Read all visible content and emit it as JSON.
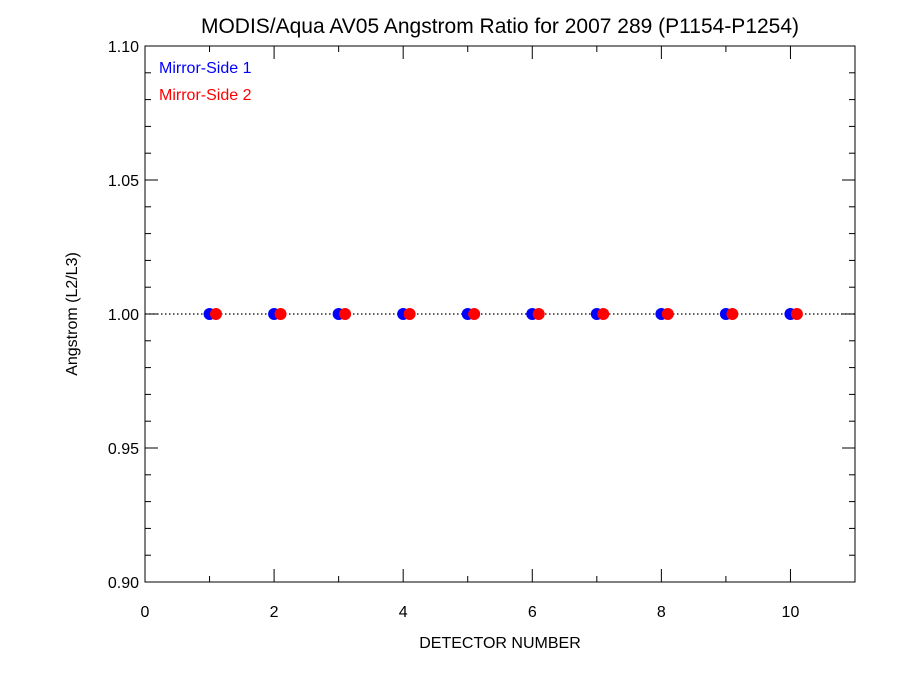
{
  "chart_data": {
    "type": "scatter",
    "title": "MODIS/Aqua AV05 Angstrom Ratio for 2007 289 (P1154-P1254)",
    "xlabel": "DETECTOR NUMBER",
    "ylabel": "Angstrom (L2/L3)",
    "xlim": [
      0,
      11
    ],
    "ylim": [
      0.9,
      1.1
    ],
    "x_ticks": [
      0,
      2,
      4,
      6,
      8,
      10
    ],
    "x_tick_labels": [
      "0",
      "2",
      "4",
      "6",
      "8",
      "10"
    ],
    "y_ticks": [
      0.9,
      0.95,
      1.0,
      1.05,
      1.1
    ],
    "y_tick_labels": [
      "0.90",
      "0.95",
      "1.00",
      "1.05",
      "1.10"
    ],
    "reference_line": {
      "y": 1.0,
      "style": "dotted"
    },
    "legend_position": "top-left",
    "series": [
      {
        "name": "Mirror-Side 1",
        "color": "#0000ff",
        "x": [
          1,
          2,
          3,
          4,
          5,
          6,
          7,
          8,
          9,
          10
        ],
        "y": [
          1.0,
          1.0,
          1.0,
          1.0,
          1.0,
          1.0,
          1.0,
          1.0,
          1.0,
          1.0
        ]
      },
      {
        "name": "Mirror-Side 2",
        "color": "#ff0000",
        "x": [
          1.1,
          2.1,
          3.1,
          4.1,
          5.1,
          6.1,
          7.1,
          8.1,
          9.1,
          10.1
        ],
        "y": [
          1.0,
          1.0,
          1.0,
          1.0,
          1.0,
          1.0,
          1.0,
          1.0,
          1.0,
          1.0
        ]
      }
    ]
  }
}
